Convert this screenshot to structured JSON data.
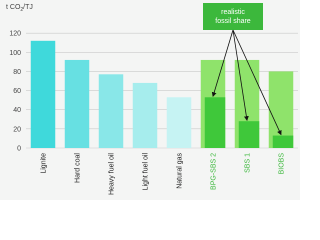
{
  "chart_data": {
    "type": "bar",
    "ylabel": [
      "t CO",
      "2",
      "/TJ"
    ],
    "categories": [
      "Lignite",
      "Hard coal",
      "Heavy fuel oil",
      "Light fuel oil",
      "Natural gas",
      "BPG-SBS 2",
      "SBS 1",
      "BIOBS"
    ],
    "values": [
      112,
      92,
      77,
      68,
      53,
      92,
      92,
      80
    ],
    "colors": [
      "#3fd9db",
      "#67e0e2",
      "#89e7e8",
      "#a6eded",
      "#c6f3f3",
      "#8fe36b",
      "#8fe36b",
      "#8fe36b"
    ],
    "label_colors": [
      "#222222",
      "#222222",
      "#222222",
      "#222222",
      "#222222",
      "#3cb83c",
      "#3cb83c",
      "#3cb83c"
    ],
    "fossil_values": [
      null,
      null,
      null,
      null,
      null,
      53,
      28,
      13
    ],
    "fossil_color": "#3fc83a",
    "annotation": [
      "realistic",
      "fossil share"
    ],
    "annotation_color": "#3cb83c",
    "ylim": [
      0,
      140
    ],
    "yticks": [
      0,
      20,
      40,
      60,
      80,
      100,
      120
    ],
    "grid": true
  }
}
